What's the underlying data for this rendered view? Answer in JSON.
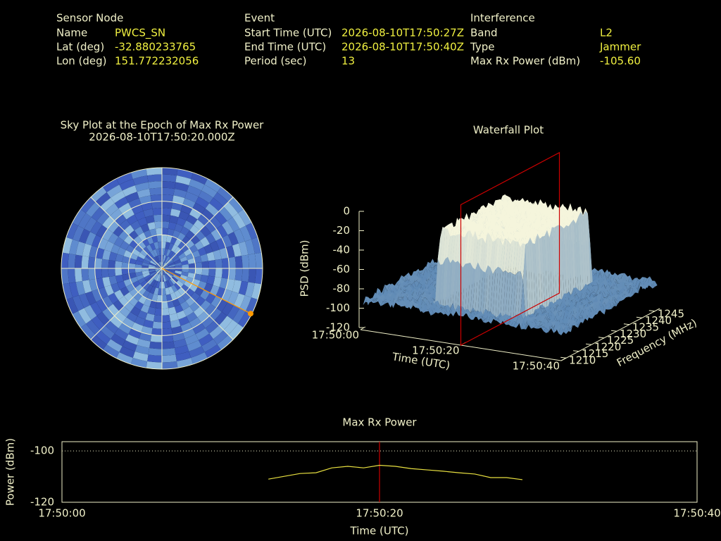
{
  "header": {
    "sensor_node": {
      "heading": "Sensor Node",
      "rows": [
        [
          "Name",
          "PWCS_SN"
        ],
        [
          "Lat (deg)",
          "-32.880233765"
        ],
        [
          "Lon (deg)",
          "151.772232056"
        ]
      ]
    },
    "event": {
      "heading": "Event",
      "rows": [
        [
          "Start Time (UTC)",
          "2026-08-10T17:50:27Z"
        ],
        [
          "End Time (UTC)",
          "2026-08-10T17:50:40Z"
        ],
        [
          "Period (sec)",
          "13"
        ]
      ]
    },
    "interference": {
      "heading": "Interference",
      "rows": [
        [
          "Band",
          "L2"
        ],
        [
          "Type",
          "Jammer"
        ],
        [
          "Max Rx Power (dBm)",
          "-105.60"
        ]
      ]
    }
  },
  "chart_data": [
    {
      "type": "polar",
      "title": "Sky Plot at the Epoch of Max Rx Power",
      "subtitle": "2026-08-10T17:50:20.000Z",
      "elevation_rings": [
        30,
        60
      ],
      "azimuth_spokes": [
        0,
        45,
        90,
        135,
        180,
        225,
        270,
        315
      ],
      "direction": {
        "azimuth": 117,
        "elevation": 1
      },
      "color": "#ff9900"
    },
    {
      "type": "surface",
      "title": "Waterfall Plot",
      "zlabel": "PSD (dBm)",
      "zlim": [
        -120,
        0
      ],
      "zticks": [
        -120,
        -100,
        -80,
        -60,
        -40,
        -20,
        0
      ],
      "xlabel": "Time (UTC)",
      "xlim": [
        "17:50:00",
        "17:50:40"
      ],
      "xticks": [
        "17:50:00",
        "17:50:20",
        "17:50:40"
      ],
      "ylabel": "Frequency (MHz)",
      "ylim": [
        1208,
        1247
      ],
      "yticks": [
        1210,
        1215,
        1220,
        1225,
        1230,
        1235,
        1240,
        1245
      ],
      "epoch_plane": "17:50:20",
      "plane_color": "#cc0000"
    },
    {
      "type": "line",
      "title": "Max Rx Power",
      "xlabel": "Time (UTC)",
      "ylabel": "Power (dBm)",
      "x": [
        "17:50:13",
        "17:50:14",
        "17:50:15",
        "17:50:16",
        "17:50:17",
        "17:50:18",
        "17:50:19",
        "17:50:20",
        "17:50:21",
        "17:50:22",
        "17:50:23",
        "17:50:24",
        "17:50:25",
        "17:50:26",
        "17:50:27",
        "17:50:28",
        "17:50:29"
      ],
      "values": [
        -111.0,
        -109.9,
        -108.8,
        -108.5,
        -106.6,
        -106.0,
        -106.6,
        -105.6,
        -106.0,
        -106.9,
        -107.4,
        -107.9,
        -108.5,
        -109.0,
        -110.4,
        -110.4,
        -111.2
      ],
      "color": "#e8e040",
      "xlim": [
        "17:50:00",
        "17:50:40"
      ],
      "xticks": [
        "17:50:00",
        "17:50:20",
        "17:50:40"
      ],
      "ylim": [
        -120,
        -96.4
      ],
      "yticks": [
        -120,
        -100
      ],
      "grid": true,
      "epoch_marker": "17:50:20",
      "marker_color": "#cc0000"
    }
  ]
}
